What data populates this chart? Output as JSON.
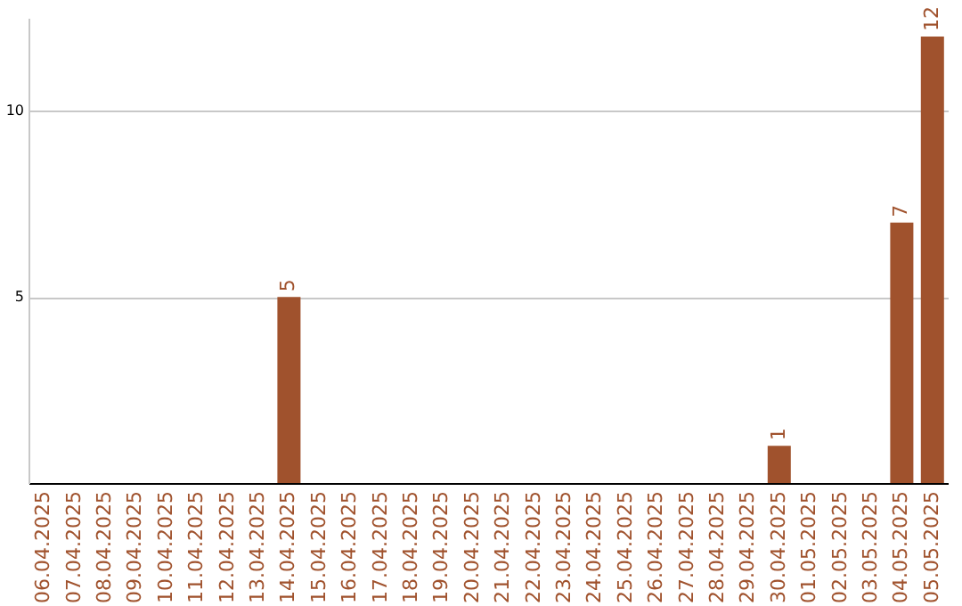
{
  "chart_data": {
    "type": "bar",
    "categories": [
      "06.04.2025",
      "07.04.2025",
      "08.04.2025",
      "09.04.2025",
      "10.04.2025",
      "11.04.2025",
      "12.04.2025",
      "13.04.2025",
      "14.04.2025",
      "15.04.2025",
      "16.04.2025",
      "17.04.2025",
      "18.04.2025",
      "19.04.2025",
      "20.04.2025",
      "21.04.2025",
      "22.04.2025",
      "23.04.2025",
      "24.04.2025",
      "25.04.2025",
      "26.04.2025",
      "27.04.2025",
      "28.04.2025",
      "29.04.2025",
      "30.04.2025",
      "01.05.2025",
      "02.05.2025",
      "03.05.2025",
      "04.05.2025",
      "05.05.2025"
    ],
    "values": [
      0,
      0,
      0,
      0,
      0,
      0,
      0,
      0,
      5,
      0,
      0,
      0,
      0,
      0,
      0,
      0,
      0,
      0,
      0,
      0,
      0,
      0,
      0,
      0,
      1,
      0,
      0,
      0,
      7,
      12
    ],
    "value_labels": [
      null,
      null,
      null,
      null,
      null,
      null,
      null,
      null,
      "5",
      null,
      null,
      null,
      null,
      null,
      null,
      null,
      null,
      null,
      null,
      null,
      null,
      null,
      null,
      null,
      "1",
      null,
      null,
      null,
      "7",
      "12"
    ],
    "color": "#a0522d",
    "ylim": [
      0,
      12.5
    ],
    "yticks": [
      5,
      10
    ],
    "grid": "y"
  }
}
